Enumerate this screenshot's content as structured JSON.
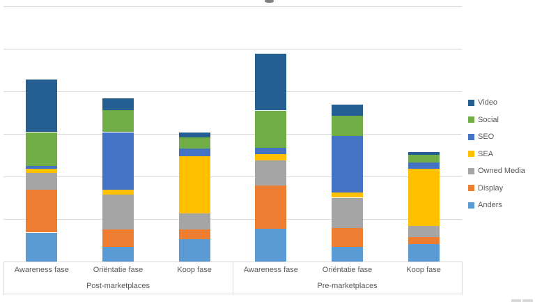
{
  "chart_data": {
    "type": "bar",
    "stacked": true,
    "orientation": "vertical",
    "title": "",
    "title_note": "chart title cut off at top edge of screenshot (only letter descender visible)",
    "group_labels": [
      "Post-marketplaces",
      "Pre-marketplaces"
    ],
    "categories": [
      "Awareness fase",
      "Oriëntatie fase",
      "Koop fase",
      "Awareness fase",
      "Oriëntatie fase",
      "Koop fase"
    ],
    "series": [
      {
        "name": "Anders",
        "color": "#5B9BD5",
        "values": [
          6.8,
          3.4,
          5.3,
          7.7,
          3.4,
          4.1
        ]
      },
      {
        "name": "Display",
        "color": "#ED7D31",
        "values": [
          10.1,
          4.1,
          2.2,
          10.1,
          4.5,
          1.6
        ]
      },
      {
        "name": "Owned Media",
        "color": "#A5A5A5",
        "values": [
          3.9,
          8.2,
          3.8,
          5.9,
          7.1,
          2.6
        ]
      },
      {
        "name": "SEA",
        "color": "#FFC000",
        "values": [
          1.0,
          1.2,
          13.4,
          1.5,
          1.3,
          13.5
        ]
      },
      {
        "name": "SEO",
        "color": "#4472C4",
        "values": [
          0.6,
          13.5,
          1.9,
          1.5,
          13.2,
          1.5
        ]
      },
      {
        "name": "Social",
        "color": "#70AD47",
        "values": [
          8.0,
          5.2,
          2.6,
          8.8,
          4.7,
          1.8
        ]
      },
      {
        "name": "Video",
        "color": "#255E91",
        "values": [
          12.4,
          2.8,
          1.2,
          13.4,
          2.7,
          0.6
        ]
      }
    ],
    "legend": [
      "Video",
      "Social",
      "SEO",
      "SEA",
      "Owned Media",
      "Display",
      "Anders"
    ],
    "legend_position": "right",
    "y_axis": {
      "tick_labels_visible": false,
      "gridline_count": 6,
      "units_per_gridline": 10,
      "ymax_units": 60
    },
    "grid": true,
    "gridline_color": "#D9D9D9",
    "axis_text_color": "#595959"
  }
}
